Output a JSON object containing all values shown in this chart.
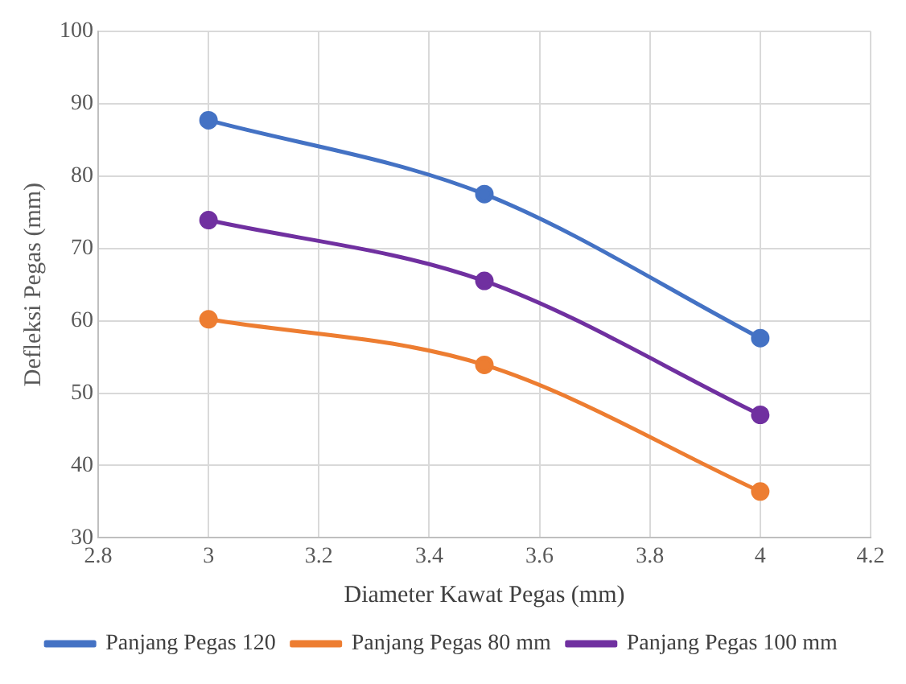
{
  "chart_data": {
    "type": "line",
    "xlabel": "Diameter Kawat Pegas (mm)",
    "ylabel": "Defleksi Pegas (mm)",
    "x": [
      3,
      3.5,
      4
    ],
    "series": [
      {
        "name": "Panjang Pegas 120",
        "color": "#4472c4",
        "values": [
          87.7,
          77.5,
          57.6
        ]
      },
      {
        "name": "Panjang Pegas 80 mm",
        "color": "#ed7d31",
        "values": [
          60.2,
          53.9,
          36.4
        ]
      },
      {
        "name": "Panjang Pegas 100 mm",
        "color": "#7030a0",
        "values": [
          73.9,
          65.5,
          47
        ]
      }
    ],
    "xlim": [
      2.8,
      4.2
    ],
    "xticks": [
      2.8,
      3,
      3.2,
      3.4,
      3.6,
      3.8,
      4,
      4.2
    ],
    "ylim": [
      30,
      100
    ],
    "yticks": [
      30,
      40,
      50,
      60,
      70,
      80,
      90,
      100
    ],
    "grid": true,
    "legend": "bottom",
    "marker": "circle",
    "line_style": "solid"
  }
}
